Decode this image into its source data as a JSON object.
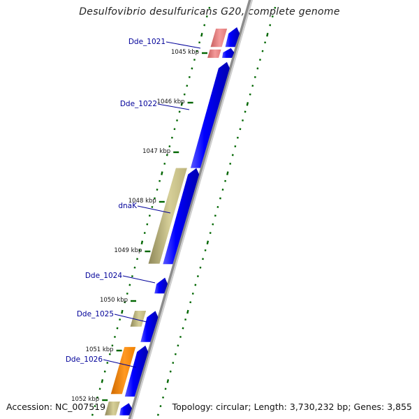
{
  "title": "Desulfovibrio desulfuricans G20, complete genome",
  "footer": {
    "accession": "Accession: NC_007519",
    "topology": "Topology: circular; Length: 3,730,232 bp; Genes: 3,855"
  },
  "colors": {
    "cds_forward": "#0000ff",
    "cds_reverse_khaki": "#c8c08a",
    "cds_reverse_pink": "#f08a8a",
    "cds_reverse_orange": "#ff8800",
    "gene_label": "#000099",
    "tick_mark": "#006600",
    "backbone": "#888888"
  },
  "scale": {
    "unit": "kbp",
    "ticks": [
      {
        "kbp": 1045,
        "label": "1045 kbp"
      },
      {
        "kbp": 1046,
        "label": "1046 kbp"
      },
      {
        "kbp": 1047,
        "label": "1047 kbp"
      },
      {
        "kbp": 1048,
        "label": "1048 kbp"
      },
      {
        "kbp": 1049,
        "label": "1049 kbp"
      },
      {
        "kbp": 1050,
        "label": "1050 kbp"
      },
      {
        "kbp": 1051,
        "label": "1051 kbp"
      },
      {
        "kbp": 1052,
        "label": "1052 kbp"
      }
    ]
  },
  "features": [
    {
      "strand": "reverse",
      "color": "pink",
      "start": 1044.55,
      "end": 1044.92,
      "label": ""
    },
    {
      "strand": "reverse",
      "color": "pink",
      "start": 1044.97,
      "end": 1045.14,
      "label": "Dde_1021"
    },
    {
      "strand": "forward",
      "color": "blue",
      "start": 1044.55,
      "end": 1044.92,
      "label": ""
    },
    {
      "strand": "forward",
      "color": "blue",
      "start": 1044.97,
      "end": 1045.14,
      "label": ""
    },
    {
      "strand": "forward",
      "color": "blue",
      "start": 1045.25,
      "end": 1047.36,
      "label": "Dde_1022"
    },
    {
      "strand": "reverse",
      "color": "khaki",
      "start": 1047.36,
      "end": 1049.29,
      "label": "dnaK"
    },
    {
      "strand": "forward",
      "color": "blue",
      "start": 1047.39,
      "end": 1049.3,
      "label": ""
    },
    {
      "strand": "forward",
      "color": "blue",
      "start": 1049.6,
      "end": 1049.89,
      "label": "Dde_1024"
    },
    {
      "strand": "reverse",
      "color": "khaki",
      "start": 1050.24,
      "end": 1050.56,
      "label": "Dde_1025"
    },
    {
      "strand": "forward",
      "color": "blue",
      "start": 1050.27,
      "end": 1050.87,
      "label": ""
    },
    {
      "strand": "reverse",
      "color": "orange",
      "start": 1050.97,
      "end": 1051.92,
      "label": "Dde_1026"
    },
    {
      "strand": "forward",
      "color": "blue",
      "start": 1050.97,
      "end": 1051.97,
      "label": ""
    },
    {
      "strand": "reverse",
      "color": "khaki",
      "start": 1052.07,
      "end": 1052.35,
      "label": ""
    },
    {
      "strand": "forward",
      "color": "blue",
      "start": 1052.13,
      "end": 1052.35,
      "label": ""
    }
  ]
}
